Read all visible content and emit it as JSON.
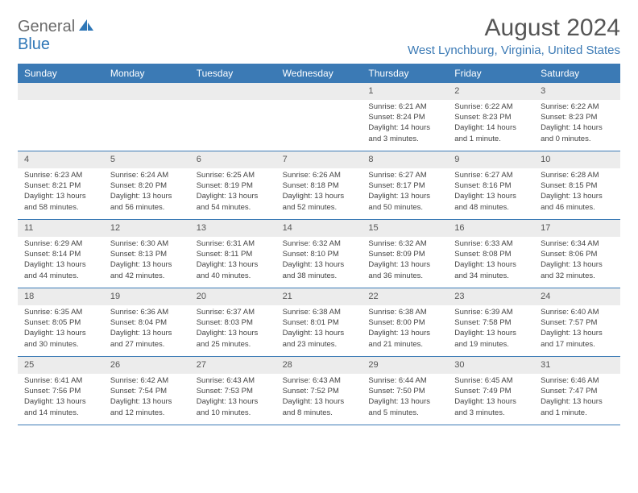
{
  "logo": {
    "part1": "General",
    "part2": "Blue"
  },
  "header": {
    "title": "August 2024",
    "location": "West Lynchburg, Virginia, United States"
  },
  "dow": [
    "Sunday",
    "Monday",
    "Tuesday",
    "Wednesday",
    "Thursday",
    "Friday",
    "Saturday"
  ],
  "colors": {
    "brand": "#3b7ab5",
    "logo_gray": "#6b6b6b",
    "text": "#555555",
    "daynum_bg": "#ececec"
  },
  "weeks": [
    [
      {
        "num": "",
        "sunrise": "",
        "sunset": "",
        "daylight1": "",
        "daylight2": ""
      },
      {
        "num": "",
        "sunrise": "",
        "sunset": "",
        "daylight1": "",
        "daylight2": ""
      },
      {
        "num": "",
        "sunrise": "",
        "sunset": "",
        "daylight1": "",
        "daylight2": ""
      },
      {
        "num": "",
        "sunrise": "",
        "sunset": "",
        "daylight1": "",
        "daylight2": ""
      },
      {
        "num": "1",
        "sunrise": "Sunrise: 6:21 AM",
        "sunset": "Sunset: 8:24 PM",
        "daylight1": "Daylight: 14 hours",
        "daylight2": "and 3 minutes."
      },
      {
        "num": "2",
        "sunrise": "Sunrise: 6:22 AM",
        "sunset": "Sunset: 8:23 PM",
        "daylight1": "Daylight: 14 hours",
        "daylight2": "and 1 minute."
      },
      {
        "num": "3",
        "sunrise": "Sunrise: 6:22 AM",
        "sunset": "Sunset: 8:23 PM",
        "daylight1": "Daylight: 14 hours",
        "daylight2": "and 0 minutes."
      }
    ],
    [
      {
        "num": "4",
        "sunrise": "Sunrise: 6:23 AM",
        "sunset": "Sunset: 8:21 PM",
        "daylight1": "Daylight: 13 hours",
        "daylight2": "and 58 minutes."
      },
      {
        "num": "5",
        "sunrise": "Sunrise: 6:24 AM",
        "sunset": "Sunset: 8:20 PM",
        "daylight1": "Daylight: 13 hours",
        "daylight2": "and 56 minutes."
      },
      {
        "num": "6",
        "sunrise": "Sunrise: 6:25 AM",
        "sunset": "Sunset: 8:19 PM",
        "daylight1": "Daylight: 13 hours",
        "daylight2": "and 54 minutes."
      },
      {
        "num": "7",
        "sunrise": "Sunrise: 6:26 AM",
        "sunset": "Sunset: 8:18 PM",
        "daylight1": "Daylight: 13 hours",
        "daylight2": "and 52 minutes."
      },
      {
        "num": "8",
        "sunrise": "Sunrise: 6:27 AM",
        "sunset": "Sunset: 8:17 PM",
        "daylight1": "Daylight: 13 hours",
        "daylight2": "and 50 minutes."
      },
      {
        "num": "9",
        "sunrise": "Sunrise: 6:27 AM",
        "sunset": "Sunset: 8:16 PM",
        "daylight1": "Daylight: 13 hours",
        "daylight2": "and 48 minutes."
      },
      {
        "num": "10",
        "sunrise": "Sunrise: 6:28 AM",
        "sunset": "Sunset: 8:15 PM",
        "daylight1": "Daylight: 13 hours",
        "daylight2": "and 46 minutes."
      }
    ],
    [
      {
        "num": "11",
        "sunrise": "Sunrise: 6:29 AM",
        "sunset": "Sunset: 8:14 PM",
        "daylight1": "Daylight: 13 hours",
        "daylight2": "and 44 minutes."
      },
      {
        "num": "12",
        "sunrise": "Sunrise: 6:30 AM",
        "sunset": "Sunset: 8:13 PM",
        "daylight1": "Daylight: 13 hours",
        "daylight2": "and 42 minutes."
      },
      {
        "num": "13",
        "sunrise": "Sunrise: 6:31 AM",
        "sunset": "Sunset: 8:11 PM",
        "daylight1": "Daylight: 13 hours",
        "daylight2": "and 40 minutes."
      },
      {
        "num": "14",
        "sunrise": "Sunrise: 6:32 AM",
        "sunset": "Sunset: 8:10 PM",
        "daylight1": "Daylight: 13 hours",
        "daylight2": "and 38 minutes."
      },
      {
        "num": "15",
        "sunrise": "Sunrise: 6:32 AM",
        "sunset": "Sunset: 8:09 PM",
        "daylight1": "Daylight: 13 hours",
        "daylight2": "and 36 minutes."
      },
      {
        "num": "16",
        "sunrise": "Sunrise: 6:33 AM",
        "sunset": "Sunset: 8:08 PM",
        "daylight1": "Daylight: 13 hours",
        "daylight2": "and 34 minutes."
      },
      {
        "num": "17",
        "sunrise": "Sunrise: 6:34 AM",
        "sunset": "Sunset: 8:06 PM",
        "daylight1": "Daylight: 13 hours",
        "daylight2": "and 32 minutes."
      }
    ],
    [
      {
        "num": "18",
        "sunrise": "Sunrise: 6:35 AM",
        "sunset": "Sunset: 8:05 PM",
        "daylight1": "Daylight: 13 hours",
        "daylight2": "and 30 minutes."
      },
      {
        "num": "19",
        "sunrise": "Sunrise: 6:36 AM",
        "sunset": "Sunset: 8:04 PM",
        "daylight1": "Daylight: 13 hours",
        "daylight2": "and 27 minutes."
      },
      {
        "num": "20",
        "sunrise": "Sunrise: 6:37 AM",
        "sunset": "Sunset: 8:03 PM",
        "daylight1": "Daylight: 13 hours",
        "daylight2": "and 25 minutes."
      },
      {
        "num": "21",
        "sunrise": "Sunrise: 6:38 AM",
        "sunset": "Sunset: 8:01 PM",
        "daylight1": "Daylight: 13 hours",
        "daylight2": "and 23 minutes."
      },
      {
        "num": "22",
        "sunrise": "Sunrise: 6:38 AM",
        "sunset": "Sunset: 8:00 PM",
        "daylight1": "Daylight: 13 hours",
        "daylight2": "and 21 minutes."
      },
      {
        "num": "23",
        "sunrise": "Sunrise: 6:39 AM",
        "sunset": "Sunset: 7:58 PM",
        "daylight1": "Daylight: 13 hours",
        "daylight2": "and 19 minutes."
      },
      {
        "num": "24",
        "sunrise": "Sunrise: 6:40 AM",
        "sunset": "Sunset: 7:57 PM",
        "daylight1": "Daylight: 13 hours",
        "daylight2": "and 17 minutes."
      }
    ],
    [
      {
        "num": "25",
        "sunrise": "Sunrise: 6:41 AM",
        "sunset": "Sunset: 7:56 PM",
        "daylight1": "Daylight: 13 hours",
        "daylight2": "and 14 minutes."
      },
      {
        "num": "26",
        "sunrise": "Sunrise: 6:42 AM",
        "sunset": "Sunset: 7:54 PM",
        "daylight1": "Daylight: 13 hours",
        "daylight2": "and 12 minutes."
      },
      {
        "num": "27",
        "sunrise": "Sunrise: 6:43 AM",
        "sunset": "Sunset: 7:53 PM",
        "daylight1": "Daylight: 13 hours",
        "daylight2": "and 10 minutes."
      },
      {
        "num": "28",
        "sunrise": "Sunrise: 6:43 AM",
        "sunset": "Sunset: 7:52 PM",
        "daylight1": "Daylight: 13 hours",
        "daylight2": "and 8 minutes."
      },
      {
        "num": "29",
        "sunrise": "Sunrise: 6:44 AM",
        "sunset": "Sunset: 7:50 PM",
        "daylight1": "Daylight: 13 hours",
        "daylight2": "and 5 minutes."
      },
      {
        "num": "30",
        "sunrise": "Sunrise: 6:45 AM",
        "sunset": "Sunset: 7:49 PM",
        "daylight1": "Daylight: 13 hours",
        "daylight2": "and 3 minutes."
      },
      {
        "num": "31",
        "sunrise": "Sunrise: 6:46 AM",
        "sunset": "Sunset: 7:47 PM",
        "daylight1": "Daylight: 13 hours",
        "daylight2": "and 1 minute."
      }
    ]
  ]
}
